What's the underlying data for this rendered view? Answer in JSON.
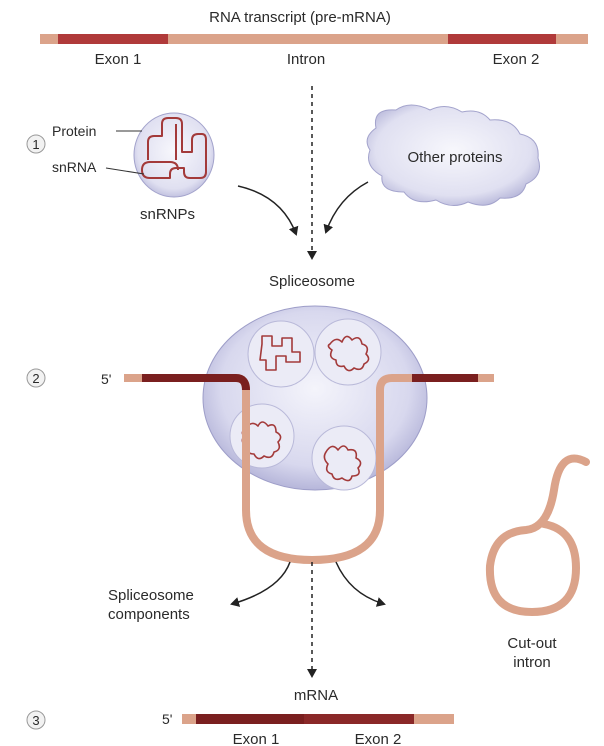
{
  "title": "RNA transcript (pre-mRNA)",
  "labels": {
    "exon1": "Exon 1",
    "intron": "Intron",
    "exon2": "Exon 2",
    "protein": "Protein",
    "snrna": "snRNA",
    "snrnps": "snRNPs",
    "other_proteins": "Other proteins",
    "spliceosome": "Spliceosome",
    "five_prime_step2": "5'",
    "spliceosome_components_line1": "Spliceosome",
    "spliceosome_components_line2": "components",
    "cutout_line1": "Cut-out",
    "cutout_line2": "intron",
    "mrna": "mRNA",
    "five_prime_step3": "5'",
    "mrna_exon1": "Exon 1",
    "mrna_exon2": "Exon 2"
  },
  "steps": [
    "1",
    "2",
    "3"
  ],
  "colors": {
    "exon": "#b03a3a",
    "exon_dark": "#7a1f1f",
    "intron": "#dba38a",
    "blob": "#c9c9e6",
    "blob_edge": "#8f8fb8",
    "rna_squiggle": "#a33a3a",
    "arrow": "#222222"
  }
}
